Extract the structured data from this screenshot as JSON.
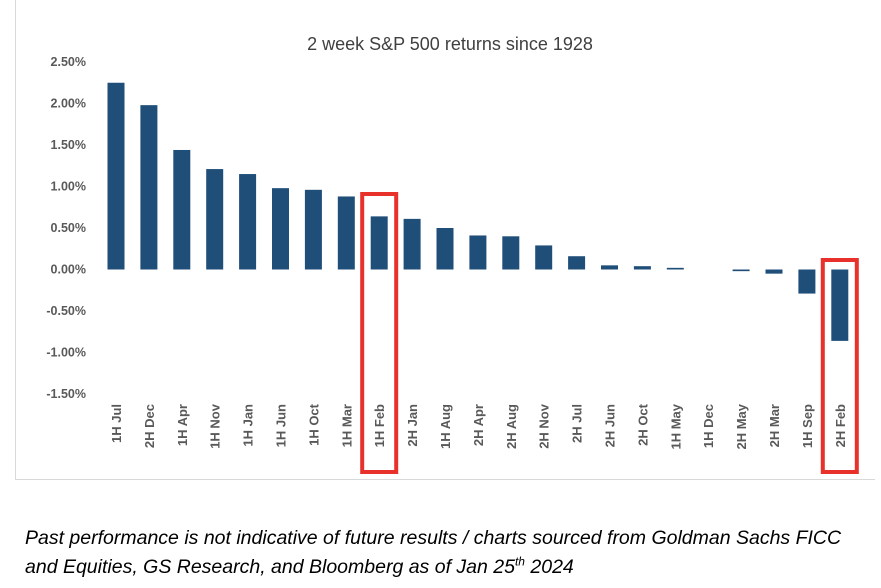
{
  "chart_data": {
    "type": "bar",
    "title": "2 week S&P 500 returns since 1928",
    "xlabel": "",
    "ylabel": "",
    "ylim": [
      -1.5,
      2.5
    ],
    "yticks": [
      "2.50%",
      "2.00%",
      "1.50%",
      "1.00%",
      "0.50%",
      "0.00%",
      "-0.50%",
      "-1.00%",
      "-1.50%"
    ],
    "ytick_values": [
      2.5,
      2.0,
      1.5,
      1.0,
      0.5,
      0.0,
      -0.5,
      -1.0,
      -1.5
    ],
    "grid": false,
    "categories": [
      "1H Jul",
      "2H Dec",
      "1H Apr",
      "1H Nov",
      "1H Jan",
      "1H Jun",
      "1H Oct",
      "1H Mar",
      "1H Feb",
      "2H Jan",
      "1H Aug",
      "2H Apr",
      "2H Aug",
      "2H Nov",
      "2H Jul",
      "2H Jun",
      "2H Oct",
      "1H May",
      "1H Dec",
      "2H May",
      "2H Mar",
      "1H Sep",
      "2H Feb"
    ],
    "values": [
      2.25,
      1.98,
      1.44,
      1.21,
      1.15,
      0.98,
      0.96,
      0.88,
      0.64,
      0.61,
      0.5,
      0.41,
      0.4,
      0.29,
      0.16,
      0.05,
      0.04,
      0.02,
      0.0,
      -0.02,
      -0.05,
      -0.29,
      -0.86
    ],
    "bar_color": "#1f4e79",
    "highlighted": [
      "1H Feb",
      "2H Feb"
    ],
    "highlight_color": "#e8312a"
  },
  "caption": {
    "text_before_sup": "Past performance is not indicative of future results / charts sourced from Goldman Sachs FICC and Equities, GS Research, and Bloomberg as of Jan 25",
    "sup": "th",
    "text_after_sup": " 2024"
  }
}
